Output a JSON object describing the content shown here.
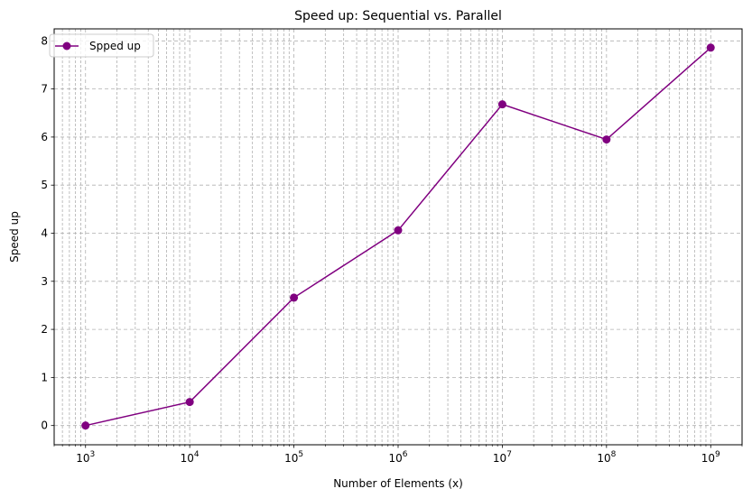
{
  "chart_data": {
    "type": "line",
    "title": "Speed up: Sequential vs. Parallel",
    "xlabel": "Number of Elements (x)",
    "ylabel": "Speed up",
    "xscale": "log",
    "xlim": [
      500,
      2000000000
    ],
    "ylim": [
      -0.4,
      8.25
    ],
    "grid": true,
    "legend_position": "top-left",
    "x_tick_labels": [
      {
        "value": 1000,
        "base": "10",
        "exp": "3"
      },
      {
        "value": 10000,
        "base": "10",
        "exp": "4"
      },
      {
        "value": 100000,
        "base": "10",
        "exp": "5"
      },
      {
        "value": 1000000,
        "base": "10",
        "exp": "6"
      },
      {
        "value": 10000000,
        "base": "10",
        "exp": "7"
      },
      {
        "value": 100000000,
        "base": "10",
        "exp": "8"
      },
      {
        "value": 1000000000,
        "base": "10",
        "exp": "9"
      }
    ],
    "y_ticks": [
      0,
      1,
      2,
      3,
      4,
      5,
      6,
      7,
      8
    ],
    "series": [
      {
        "name": "Spped up",
        "color": "#800080",
        "marker": "circle",
        "x": [
          1000,
          10000,
          100000,
          1000000,
          10000000,
          100000000,
          1000000000
        ],
        "y": [
          0.0,
          0.49,
          2.66,
          4.06,
          6.68,
          5.95,
          7.86
        ]
      }
    ]
  }
}
